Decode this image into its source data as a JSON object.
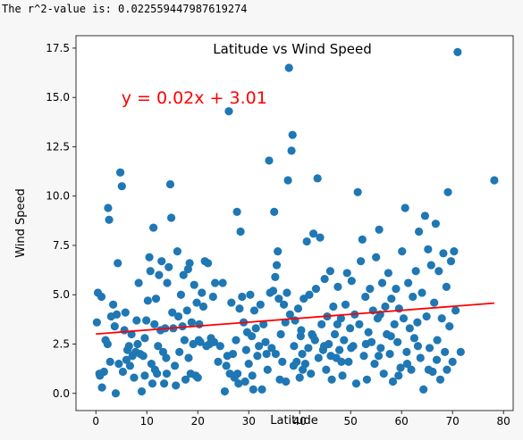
{
  "output": {
    "r2_line": "The r^2-value is: 0.022559447987619274"
  },
  "chart_data": {
    "type": "scatter",
    "title": "Latitude vs Wind Speed",
    "xlabel": "Latitude",
    "ylabel": "Wind Speed",
    "xlim": [
      -3.9,
      81.9
    ],
    "ylim": [
      -0.87,
      18.13
    ],
    "xticks": [
      0,
      10,
      20,
      30,
      40,
      50,
      60,
      70,
      80
    ],
    "xtick_labels": [
      "0",
      "10",
      "20",
      "30",
      "40",
      "50",
      "60",
      "70",
      "80"
    ],
    "yticks": [
      0.0,
      2.5,
      5.0,
      7.5,
      10.0,
      12.5,
      15.0,
      17.5
    ],
    "ytick_labels": [
      "0.0",
      "2.5",
      "5.0",
      "7.5",
      "10.0",
      "12.5",
      "15.0",
      "17.5"
    ],
    "grid": false,
    "colors": {
      "points": "#1f77b4",
      "regression": "#ff0000",
      "annotation": "#ff0000"
    },
    "regression": {
      "slope": 0.02,
      "intercept": 3.01,
      "x_range": [
        0,
        78.2
      ]
    },
    "annotation": {
      "text": "y = 0.02x + 3.01",
      "x": 5,
      "y": 15.0
    },
    "points": [
      [
        0.2,
        3.6
      ],
      [
        0.4,
        5.1
      ],
      [
        0.7,
        1.0
      ],
      [
        0.8,
        0.9
      ],
      [
        1.1,
        4.9
      ],
      [
        1.2,
        0.3
      ],
      [
        1.6,
        1.1
      ],
      [
        1.9,
        2.7
      ],
      [
        2.3,
        2.5
      ],
      [
        2.4,
        9.4
      ],
      [
        2.6,
        8.8
      ],
      [
        2.8,
        1.6
      ],
      [
        3.0,
        3.9
      ],
      [
        3.4,
        4.5
      ],
      [
        3.7,
        3.4
      ],
      [
        3.9,
        0.0
      ],
      [
        4.1,
        4.0
      ],
      [
        4.3,
        6.6
      ],
      [
        4.5,
        1.5
      ],
      [
        4.8,
        11.2
      ],
      [
        5.1,
        10.5
      ],
      [
        5.3,
        1.1
      ],
      [
        5.6,
        3.2
      ],
      [
        5.8,
        4.1
      ],
      [
        6.0,
        1.7
      ],
      [
        6.2,
        2.2
      ],
      [
        6.5,
        2.4
      ],
      [
        6.7,
        1.4
      ],
      [
        7.0,
        3.0
      ],
      [
        7.2,
        1.9
      ],
      [
        7.5,
        0.8
      ],
      [
        7.8,
        2.1
      ],
      [
        8.0,
        3.7
      ],
      [
        8.2,
        2.5
      ],
      [
        8.4,
        5.6
      ],
      [
        8.7,
        2.0
      ],
      [
        9.0,
        0.1
      ],
      [
        9.3,
        1.9
      ],
      [
        9.6,
        2.8
      ],
      [
        9.9,
        3.7
      ],
      [
        10.2,
        4.7
      ],
      [
        10.5,
        6.9
      ],
      [
        10.7,
        6.2
      ],
      [
        10.9,
        1.5
      ],
      [
        11.1,
        0.5
      ],
      [
        11.3,
        8.4
      ],
      [
        11.5,
        3.5
      ],
      [
        11.8,
        4.8
      ],
      [
        12.0,
        1.0
      ],
      [
        12.2,
        2.4
      ],
      [
        12.4,
        6.0
      ],
      [
        12.7,
        3.2
      ],
      [
        12.9,
        6.7
      ],
      [
        13.2,
        2.1
      ],
      [
        13.4,
        0.5
      ],
      [
        13.6,
        3.3
      ],
      [
        13.8,
        1.8
      ],
      [
        14.0,
        5.6
      ],
      [
        14.3,
        6.4
      ],
      [
        14.6,
        10.6
      ],
      [
        14.8,
        8.9
      ],
      [
        15.0,
        4.1
      ],
      [
        15.2,
        3.3
      ],
      [
        15.5,
        1.4
      ],
      [
        15.7,
        0.4
      ],
      [
        16.0,
        7.2
      ],
      [
        16.2,
        3.9
      ],
      [
        16.4,
        2.1
      ],
      [
        16.7,
        5.0
      ],
      [
        17.0,
        3.4
      ],
      [
        17.2,
        6.0
      ],
      [
        17.4,
        2.7
      ],
      [
        17.6,
        0.7
      ],
      [
        17.9,
        4.2
      ],
      [
        18.1,
        6.3
      ],
      [
        18.4,
        6.6
      ],
      [
        18.6,
        1.0
      ],
      [
        18.8,
        3.6
      ],
      [
        19.1,
        2.5
      ],
      [
        19.3,
        5.5
      ],
      [
        19.6,
        0.9
      ],
      [
        19.8,
        4.6
      ],
      [
        20.0,
        0.8
      ],
      [
        20.3,
        3.5
      ],
      [
        20.5,
        2.6
      ],
      [
        20.8,
        5.1
      ],
      [
        21.1,
        4.4
      ],
      [
        21.4,
        6.7
      ],
      [
        21.7,
        2.4
      ],
      [
        22.0,
        6.6
      ],
      [
        22.3,
        2.5
      ],
      [
        22.6,
        2.8
      ],
      [
        23.0,
        4.9
      ],
      [
        23.4,
        5.6
      ],
      [
        24.0,
        1.6
      ],
      [
        24.4,
        2.4
      ],
      [
        24.9,
        5.6
      ],
      [
        25.3,
        0.1
      ],
      [
        25.6,
        1.4
      ],
      [
        26.1,
        14.3
      ],
      [
        26.3,
        1.0
      ],
      [
        26.6,
        4.6
      ],
      [
        26.9,
        2.0
      ],
      [
        27.2,
        0.8
      ],
      [
        27.5,
        2.7
      ],
      [
        27.7,
        9.2
      ],
      [
        28.0,
        0.5
      ],
      [
        28.2,
        4.3
      ],
      [
        28.4,
        8.2
      ],
      [
        28.7,
        4.9
      ],
      [
        29.0,
        3.6
      ],
      [
        29.3,
        0.6
      ],
      [
        29.5,
        2.2
      ],
      [
        29.7,
        3.1
      ],
      [
        30.0,
        1.5
      ],
      [
        30.3,
        5.0
      ],
      [
        30.6,
        2.9
      ],
      [
        30.9,
        0.2
      ],
      [
        31.1,
        4.2
      ],
      [
        31.4,
        3.3
      ],
      [
        31.7,
        1.9
      ],
      [
        32.0,
        2.4
      ],
      [
        32.3,
        4.5
      ],
      [
        32.6,
        0.2
      ],
      [
        32.9,
        3.5
      ],
      [
        33.3,
        2.6
      ],
      [
        33.7,
        1.2
      ],
      [
        34.0,
        11.8
      ],
      [
        34.2,
        5.1
      ],
      [
        34.5,
        2.3
      ],
      [
        34.8,
        5.2
      ],
      [
        35.0,
        9.2
      ],
      [
        35.2,
        5.9
      ],
      [
        35.5,
        6.5
      ],
      [
        35.7,
        7.2
      ],
      [
        35.9,
        4.8
      ],
      [
        36.1,
        0.7
      ],
      [
        36.3,
        3.0
      ],
      [
        36.6,
        1.6
      ],
      [
        36.9,
        4.5
      ],
      [
        37.2,
        3.6
      ],
      [
        37.5,
        5.1
      ],
      [
        37.7,
        10.8
      ],
      [
        37.9,
        16.5
      ],
      [
        38.1,
        4.0
      ],
      [
        38.4,
        12.3
      ],
      [
        38.6,
        13.1
      ],
      [
        38.9,
        2.4
      ],
      [
        39.1,
        3.7
      ],
      [
        39.4,
        1.6
      ],
      [
        39.7,
        4.3
      ],
      [
        40.0,
        0.8
      ],
      [
        40.2,
        2.9
      ],
      [
        40.5,
        2.0
      ],
      [
        40.8,
        4.8
      ],
      [
        41.1,
        1.5
      ],
      [
        41.4,
        7.7
      ],
      [
        41.7,
        2.3
      ],
      [
        41.9,
        5.0
      ],
      [
        42.2,
        1.0
      ],
      [
        42.4,
        3.0
      ],
      [
        42.7,
        8.1
      ],
      [
        43.0,
        2.7
      ],
      [
        43.2,
        5.3
      ],
      [
        43.5,
        10.9
      ],
      [
        43.7,
        1.8
      ],
      [
        44.0,
        7.9
      ],
      [
        44.3,
        3.5
      ],
      [
        44.6,
        2.2
      ],
      [
        44.9,
        5.8
      ],
      [
        45.2,
        1.2
      ],
      [
        45.4,
        3.9
      ],
      [
        45.7,
        2.5
      ],
      [
        46.0,
        6.2
      ],
      [
        46.3,
        0.7
      ],
      [
        46.6,
        4.4
      ],
      [
        46.9,
        3.0
      ],
      [
        47.2,
        1.8
      ],
      [
        47.5,
        5.4
      ],
      [
        47.8,
        2.2
      ],
      [
        48.1,
        3.8
      ],
      [
        48.4,
        0.9
      ],
      [
        48.7,
        2.7
      ],
      [
        49.0,
        4.5
      ],
      [
        49.3,
        6.1
      ],
      [
        49.6,
        1.6
      ],
      [
        49.9,
        3.3
      ],
      [
        50.2,
        5.7
      ],
      [
        50.5,
        2.4
      ],
      [
        50.8,
        4.0
      ],
      [
        51.1,
        0.5
      ],
      [
        51.4,
        10.2
      ],
      [
        51.7,
        3.5
      ],
      [
        52.0,
        6.7
      ],
      [
        52.3,
        7.8
      ],
      [
        52.6,
        1.9
      ],
      [
        52.9,
        4.9
      ],
      [
        53.2,
        0.7
      ],
      [
        53.5,
        3.1
      ],
      [
        53.8,
        5.3
      ],
      [
        54.1,
        2.6
      ],
      [
        54.4,
        4.2
      ],
      [
        54.7,
        1.5
      ],
      [
        55.0,
        6.9
      ],
      [
        55.3,
        3.8
      ],
      [
        55.6,
        8.3
      ],
      [
        55.9,
        2.3
      ],
      [
        56.2,
        5.6
      ],
      [
        56.5,
        1.0
      ],
      [
        56.8,
        4.4
      ],
      [
        57.1,
        3.0
      ],
      [
        57.4,
        6.1
      ],
      [
        57.7,
        2.0
      ],
      [
        58.0,
        4.8
      ],
      [
        58.3,
        0.6
      ],
      [
        58.6,
        3.5
      ],
      [
        58.9,
        5.3
      ],
      [
        59.2,
        2.6
      ],
      [
        59.5,
        4.3
      ],
      [
        59.8,
        1.3
      ],
      [
        60.1,
        7.2
      ],
      [
        60.4,
        3.8
      ],
      [
        60.7,
        9.4
      ],
      [
        61.0,
        2.1
      ],
      [
        61.3,
        5.6
      ],
      [
        61.6,
        3.3
      ],
      [
        61.9,
        1.2
      ],
      [
        62.2,
        4.9
      ],
      [
        62.5,
        2.8
      ],
      [
        62.8,
        6.2
      ],
      [
        63.1,
        3.6
      ],
      [
        63.4,
        8.2
      ],
      [
        63.7,
        1.8
      ],
      [
        64.0,
        5.1
      ],
      [
        64.3,
        0.2
      ],
      [
        64.6,
        9.0
      ],
      [
        64.9,
        3.9
      ],
      [
        65.2,
        7.3
      ],
      [
        65.5,
        2.3
      ],
      [
        65.8,
        6.5
      ],
      [
        66.1,
        1.1
      ],
      [
        66.4,
        4.6
      ],
      [
        66.7,
        8.6
      ],
      [
        67.0,
        2.7
      ],
      [
        67.3,
        6.2
      ],
      [
        67.6,
        0.7
      ],
      [
        67.9,
        3.8
      ],
      [
        68.2,
        7.1
      ],
      [
        68.5,
        2.1
      ],
      [
        68.8,
        5.4
      ],
      [
        69.1,
        10.2
      ],
      [
        69.4,
        3.4
      ],
      [
        69.7,
        6.7
      ],
      [
        70.0,
        1.6
      ],
      [
        70.3,
        7.2
      ],
      [
        70.6,
        4.2
      ],
      [
        71.0,
        17.3
      ],
      [
        71.6,
        2.1
      ],
      [
        78.2,
        10.8
      ],
      [
        9.6,
        0.9
      ],
      [
        11.6,
        1.2
      ],
      [
        13.9,
        1.0
      ],
      [
        18.2,
        1.8
      ],
      [
        20.2,
        2.7
      ],
      [
        23.2,
        2.6
      ],
      [
        25.8,
        1.9
      ],
      [
        27.8,
        1.0
      ],
      [
        30.7,
        0.9
      ],
      [
        33.5,
        2.0
      ],
      [
        35.3,
        2.0
      ],
      [
        37.3,
        0.6
      ],
      [
        38.8,
        1.4
      ],
      [
        40.3,
        3.2
      ],
      [
        42.6,
        2.9
      ],
      [
        44.8,
        2.4
      ],
      [
        46.1,
        1.9
      ],
      [
        48.2,
        1.6
      ],
      [
        50.1,
        2.3
      ],
      [
        53.0,
        2.5
      ],
      [
        55.5,
        1.9
      ],
      [
        57.9,
        2.9
      ],
      [
        59.4,
        0.9
      ],
      [
        61.1,
        1.5
      ],
      [
        63.2,
        2.4
      ],
      [
        65.3,
        1.2
      ],
      [
        66.9,
        1.7
      ],
      [
        68.9,
        1.2
      ],
      [
        55.8,
        4.0
      ],
      [
        47.4,
        3.5
      ],
      [
        40.6,
        1.2
      ]
    ]
  }
}
